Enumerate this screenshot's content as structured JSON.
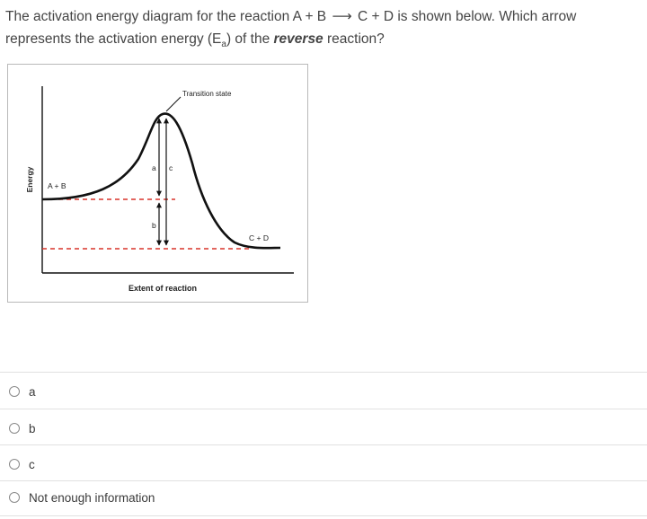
{
  "question": {
    "part1": "The activation energy diagram for the reaction A + B",
    "arrow": "⟶",
    "part2": "C + D is shown below. Which arrow represents the activation energy (E",
    "subscript": "a",
    "part3": ") of the ",
    "emphasis": "reverse",
    "part4": " reaction?"
  },
  "diagram": {
    "y_axis_label": "Energy",
    "x_axis_label": "Extent of reaction",
    "transition_label": "Transition state",
    "reactants_label": "A + B",
    "products_label": "C + D",
    "arrow_labels": {
      "a": "a",
      "b": "b",
      "c": "c"
    },
    "curve_color": "#111111",
    "dashed_line_color": "#d8342a"
  },
  "options": [
    {
      "label": "a"
    },
    {
      "label": "b"
    },
    {
      "label": "c"
    },
    {
      "label": "Not enough information"
    }
  ]
}
